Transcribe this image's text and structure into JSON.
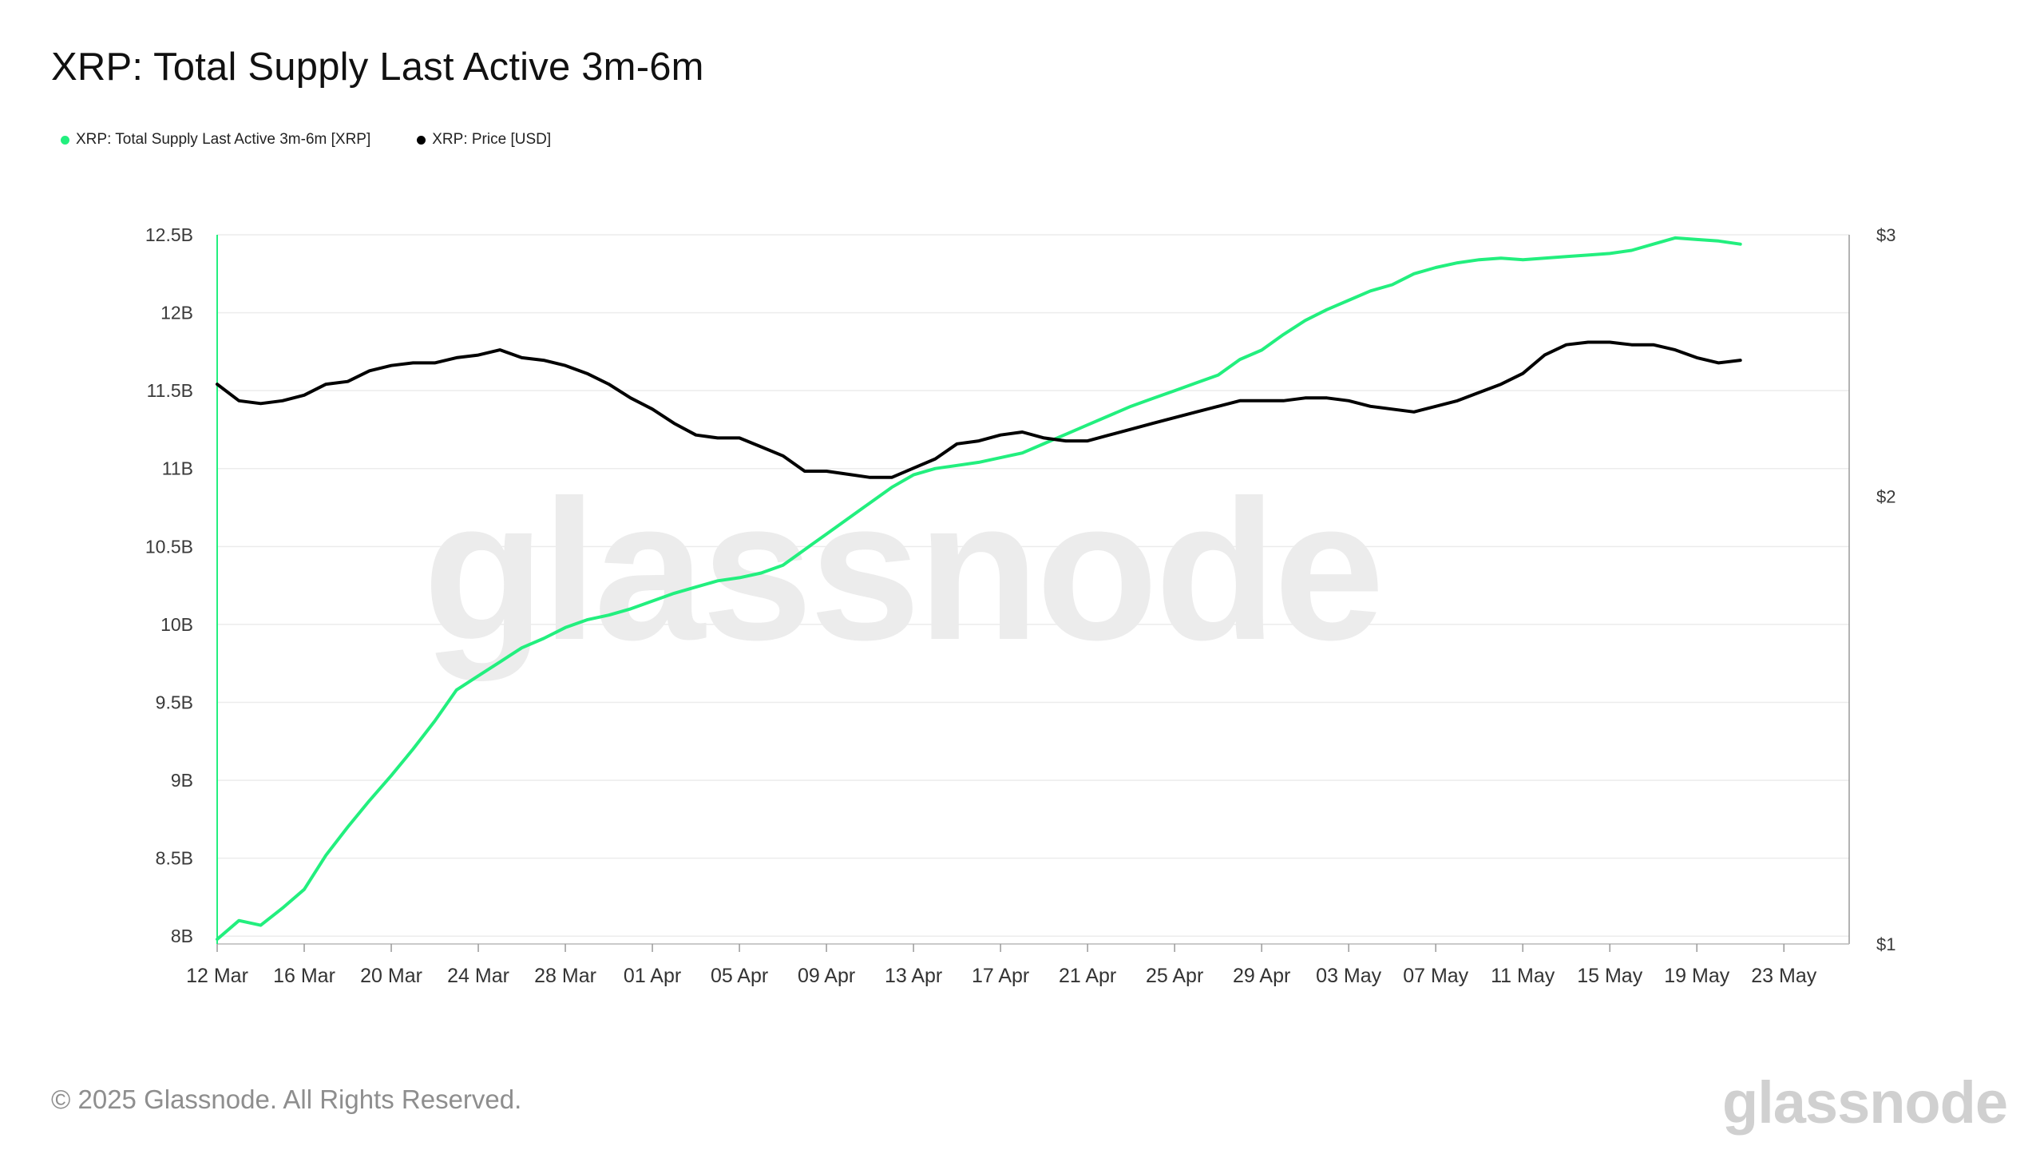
{
  "title": "XRP: Total Supply Last Active 3m-6m",
  "legend": [
    {
      "label": "XRP: Total Supply Last Active 3m-6m [XRP]",
      "color": "#22ef7e"
    },
    {
      "label": "XRP: Price [USD]",
      "color": "#000000"
    }
  ],
  "watermark": "glassnode",
  "footer": {
    "copyright": "© 2025 Glassnode. All Rights Reserved.",
    "logo": "glassnode"
  },
  "chart_data": {
    "type": "line",
    "title": "XRP: Total Supply Last Active 3m-6m",
    "x_ticks": [
      "12 Mar",
      "16 Mar",
      "20 Mar",
      "24 Mar",
      "28 Mar",
      "01 Apr",
      "05 Apr",
      "09 Apr",
      "13 Apr",
      "17 Apr",
      "21 Apr",
      "25 Apr",
      "29 Apr",
      "03 May",
      "07 May",
      "11 May",
      "15 May",
      "19 May",
      "23 May"
    ],
    "y_left": {
      "min": 7950000000,
      "max": 12500000000,
      "ticks": [
        8000000000,
        8500000000,
        9000000000,
        9500000000,
        10000000000,
        10500000000,
        11000000000,
        11500000000,
        12000000000,
        12500000000
      ],
      "tick_labels": [
        "8B",
        "8.5B",
        "9B",
        "9.5B",
        "10B",
        "10.5B",
        "11B",
        "11.5B",
        "12B",
        "12.5B"
      ]
    },
    "y_right": {
      "scale": "log",
      "min": 1,
      "max": 3,
      "ticks": [
        1,
        2,
        3
      ],
      "tick_labels": [
        "$1",
        "$2",
        "$3"
      ]
    },
    "grid": true,
    "legend_position": "top-left",
    "series": [
      {
        "name": "XRP: Total Supply Last Active 3m-6m [XRP]",
        "axis": "left",
        "color": "#22ef7e",
        "start": "12 Mar",
        "values": [
          7980000000.0,
          8100000000.0,
          8070000000.0,
          8180000000.0,
          8300000000.0,
          8520000000.0,
          8700000000.0,
          8870000000.0,
          9030000000.0,
          9200000000.0,
          9380000000.0,
          9580000000.0,
          9670000000.0,
          9760000000.0,
          9850000000.0,
          9910000000.0,
          9980000000.0,
          10030000000.0,
          10060000000.0,
          10100000000.0,
          10150000000.0,
          10200000000.0,
          10240000000.0,
          10280000000.0,
          10300000000.0,
          10330000000.0,
          10380000000.0,
          10480000000.0,
          10580000000.0,
          10680000000.0,
          10780000000.0,
          10880000000.0,
          10960000000.0,
          11000000000.0,
          11020000000.0,
          11040000000.0,
          11070000000.0,
          11100000000.0,
          11160000000.0,
          11220000000.0,
          11280000000.0,
          11340000000.0,
          11400000000.0,
          11450000000.0,
          11500000000.0,
          11550000000.0,
          11600000000.0,
          11700000000.0,
          11760000000.0,
          11860000000.0,
          11950000000.0,
          12020000000.0,
          12080000000.0,
          12140000000.0,
          12180000000.0,
          12250000000.0,
          12290000000.0,
          12320000000.0,
          12340000000.0,
          12350000000.0,
          12340000000.0,
          12350000000.0,
          12360000000.0,
          12370000000.0,
          12380000000.0,
          12400000000.0,
          12440000000.0,
          12480000000.0,
          12470000000.0,
          12460000000.0,
          12440000000.0
        ]
      },
      {
        "name": "XRP: Price [USD]",
        "axis": "right",
        "color": "#000000",
        "start": "12 Mar",
        "values": [
          2.38,
          2.32,
          2.31,
          2.32,
          2.34,
          2.38,
          2.39,
          2.43,
          2.45,
          2.46,
          2.46,
          2.48,
          2.49,
          2.51,
          2.48,
          2.47,
          2.45,
          2.42,
          2.38,
          2.33,
          2.29,
          2.24,
          2.2,
          2.19,
          2.19,
          2.16,
          2.13,
          2.08,
          2.08,
          2.07,
          2.06,
          2.06,
          2.09,
          2.12,
          2.17,
          2.18,
          2.2,
          2.21,
          2.19,
          2.18,
          2.18,
          2.2,
          2.22,
          2.24,
          2.26,
          2.28,
          2.3,
          2.32,
          2.32,
          2.32,
          2.33,
          2.33,
          2.32,
          2.3,
          2.29,
          2.28,
          2.3,
          2.32,
          2.35,
          2.38,
          2.42,
          2.49,
          2.53,
          2.54,
          2.54,
          2.53,
          2.53,
          2.51,
          2.48,
          2.46,
          2.47
        ]
      }
    ]
  }
}
